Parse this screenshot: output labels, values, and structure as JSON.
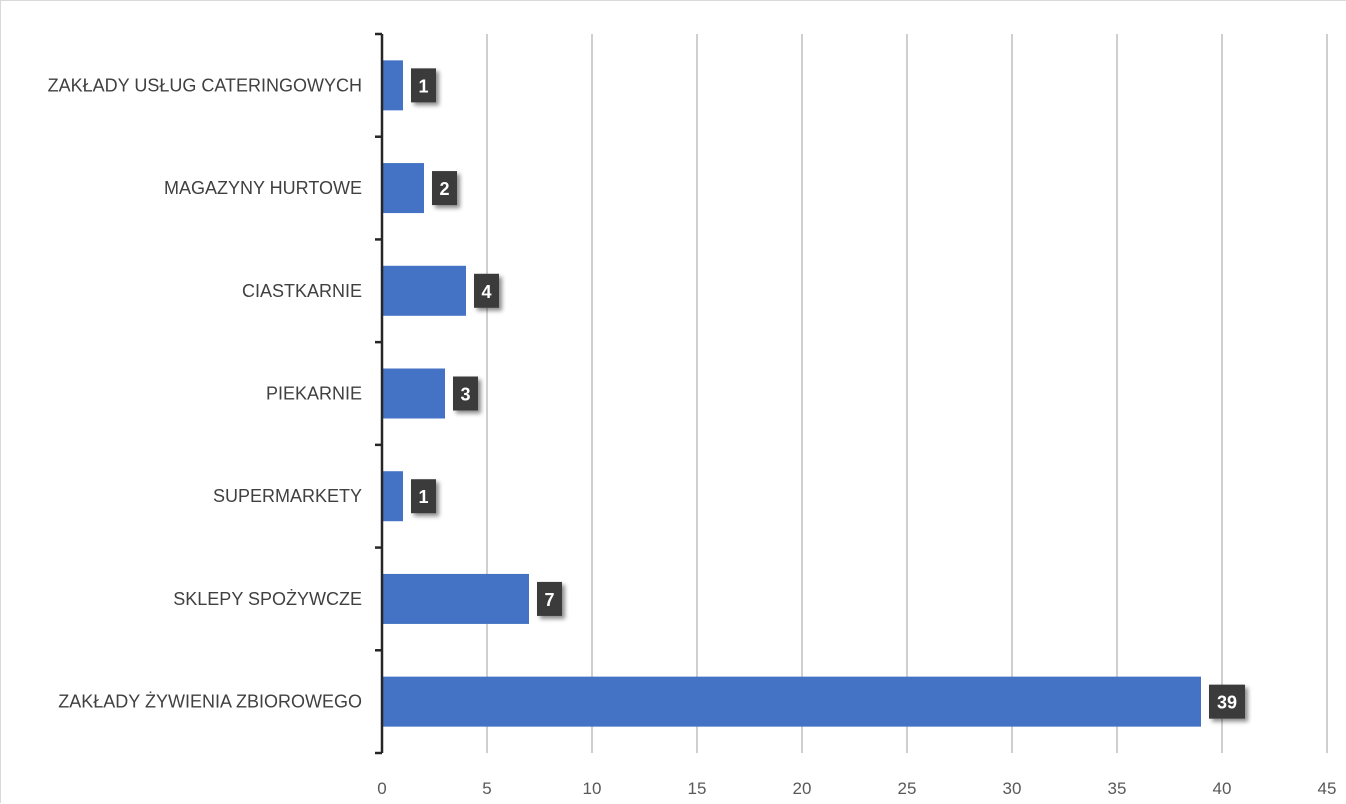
{
  "chart_data": {
    "type": "bar",
    "orientation": "horizontal",
    "categories": [
      "ZAKŁADY USŁUG CATERINGOWYCH",
      "MAGAZYNY HURTOWE",
      "CIASTKARNIE",
      "PIEKARNIE",
      "SUPERMARKETY",
      "SKLEPY SPOŻYWCZE",
      "ZAKŁADY ŻYWIENIA ZBIOROWEGO"
    ],
    "values": [
      1,
      2,
      4,
      3,
      1,
      7,
      39
    ],
    "data_labels": [
      "1",
      "2",
      "4",
      "3",
      "1",
      "7",
      "39"
    ],
    "xticks": [
      "0",
      "5",
      "10",
      "15",
      "20",
      "25",
      "30",
      "35",
      "40",
      "45"
    ],
    "xlim": [
      0,
      45
    ],
    "title": "",
    "xlabel": "",
    "ylabel": "",
    "grid": "vertical",
    "legend": "none",
    "colors": {
      "bar": "#4472c4",
      "label_bg": "#3a3a3a",
      "grid": "#bfbfbf",
      "axis": "#262626"
    }
  }
}
